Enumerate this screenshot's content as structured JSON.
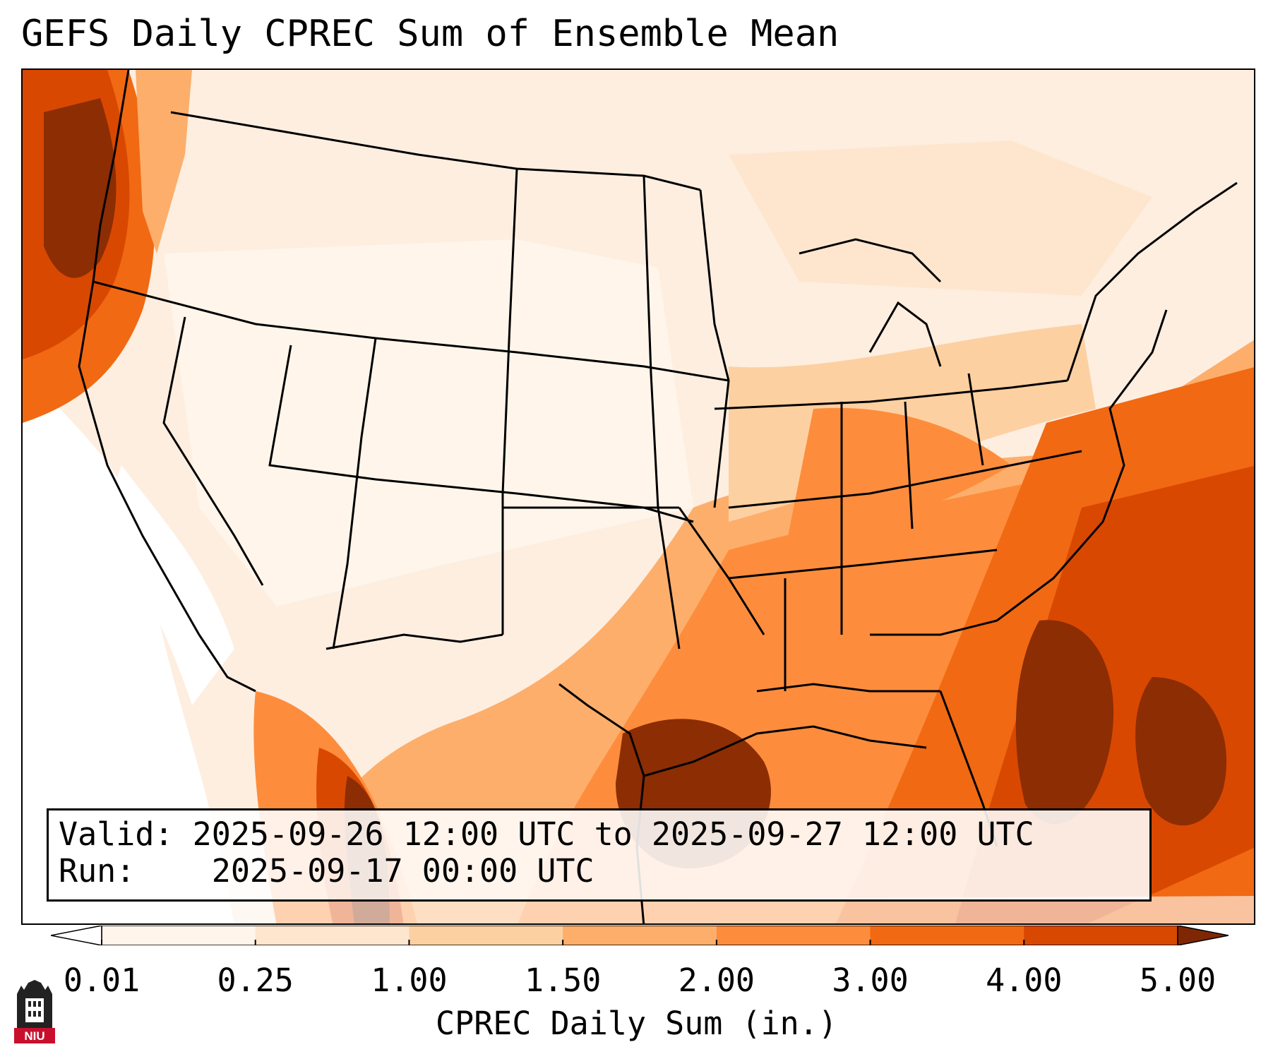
{
  "title": "GEFS Daily CPREC Sum of Ensemble Mean",
  "info": {
    "valid_label": "Valid:",
    "valid_value": "2025-09-26 12:00 UTC to 2025-09-27 12:00 UTC",
    "run_label": "Run:",
    "run_value": "2025-09-17 00:00 UTC"
  },
  "colorbar": {
    "label": "CPREC Daily Sum (in.)",
    "ticks": [
      "0.01",
      "0.25",
      "1.00",
      "1.50",
      "2.00",
      "3.00",
      "4.00",
      "5.00"
    ],
    "colors": [
      "#fff5eb",
      "#fee6ce",
      "#fdd0a2",
      "#fdae6b",
      "#fd8d3c",
      "#f16913",
      "#d94801",
      "#8c2d04"
    ],
    "under_color": "#ffffff",
    "over_color": "#7f2704"
  },
  "logo": {
    "text": "NIU",
    "color": "#c8102e"
  },
  "map_colors": {
    "background": "#fdeee0",
    "ocean_dry": "#ffffff",
    "light": "#fff5eb",
    "light2": "#fee6ce",
    "medium": "#fdd0a2",
    "medium2": "#fdae6b",
    "orange": "#fd8d3c",
    "dark_orange": "#f16913",
    "red_orange": "#d94801",
    "brown": "#8c2d04"
  }
}
